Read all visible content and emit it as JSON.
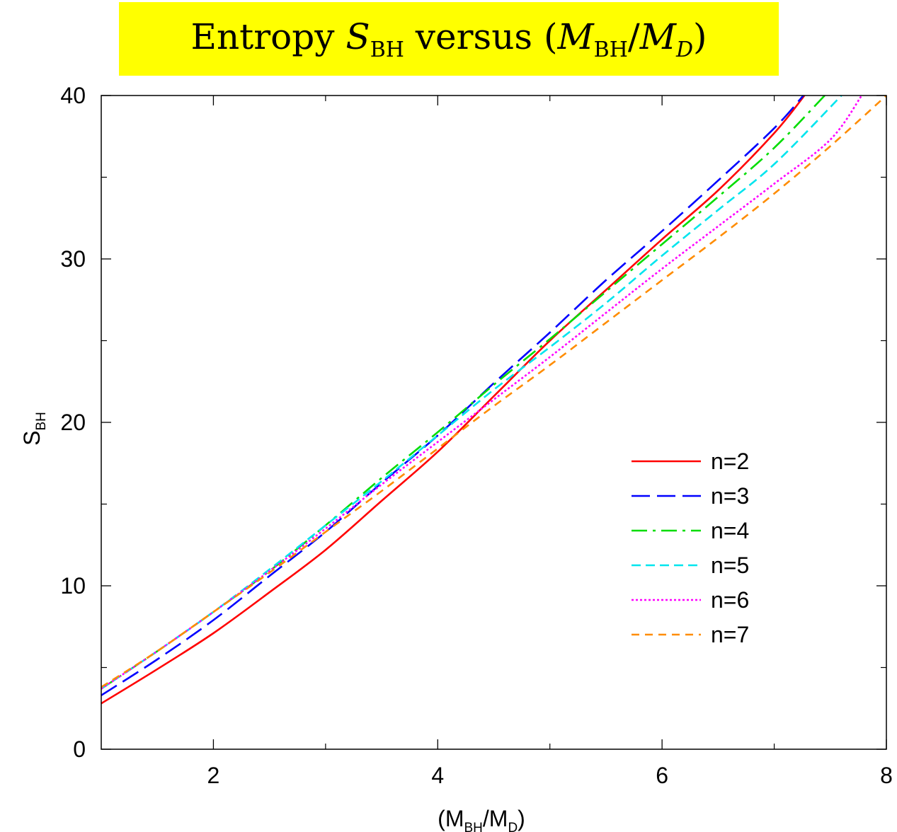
{
  "title": {
    "prefix": "Entropy ",
    "s_symbol": "S",
    "s_sub": "BH",
    "middle": " versus (",
    "m_symbol": "M",
    "m_sub": "BH",
    "slash": "/",
    "md_symbol": "M",
    "md_sub": "D",
    "suffix": ")"
  },
  "colors": {
    "title_background": "#ffff00",
    "axis": "#000000"
  },
  "chart_data": {
    "type": "line",
    "title": "Entropy S_BH versus (M_BH/M_D)",
    "xlabel": "(M_BH/M_D)",
    "ylabel": "S_BH",
    "xlabel_parts": {
      "open": "(M",
      "sub1": "BH",
      "slash": "/M",
      "sub2": "D",
      "close": ")"
    },
    "ylabel_parts": {
      "main": "S",
      "sub": "BH"
    },
    "xlim": [
      1,
      8
    ],
    "ylim": [
      0,
      40
    ],
    "xticks": [
      2,
      4,
      6,
      8
    ],
    "yticks": [
      0,
      10,
      20,
      30,
      40
    ],
    "x_minor_step": 1,
    "y_minor_step": 5,
    "grid": false,
    "legend_position": "right-middle",
    "series": [
      {
        "name": "n=2",
        "color": "#ff0000",
        "dash": "solid",
        "x": [
          1.0,
          1.5,
          2.0,
          2.5,
          3.0,
          3.5,
          4.0,
          4.5,
          5.0,
          5.5,
          6.0,
          6.5,
          7.0,
          7.27
        ],
        "y": [
          2.8,
          4.9,
          7.1,
          9.6,
          12.2,
          15.2,
          18.2,
          21.6,
          25.0,
          28.1,
          31.2,
          34.2,
          37.7,
          40.0
        ]
      },
      {
        "name": "n=3",
        "color": "#0000ff",
        "dash": "long-dash",
        "x": [
          1.0,
          1.5,
          2.0,
          2.5,
          3.0,
          3.5,
          4.0,
          4.5,
          5.0,
          5.5,
          6.0,
          6.5,
          7.0,
          7.26
        ],
        "y": [
          3.3,
          5.5,
          7.9,
          10.6,
          13.3,
          16.3,
          19.2,
          22.4,
          25.5,
          28.7,
          31.7,
          34.8,
          38.0,
          40.0
        ]
      },
      {
        "name": "n=4",
        "color": "#00dd00",
        "dash": "dash-dot",
        "x": [
          1.0,
          1.5,
          2.0,
          2.5,
          3.0,
          3.5,
          4.0,
          4.5,
          5.0,
          5.5,
          6.0,
          6.5,
          7.0,
          7.45
        ],
        "y": [
          3.7,
          6.0,
          8.4,
          10.9,
          13.7,
          16.6,
          19.4,
          22.3,
          25.1,
          28.0,
          30.9,
          33.8,
          36.8,
          40.0
        ]
      },
      {
        "name": "n=5",
        "color": "#00e5ee",
        "dash": "medium-dash",
        "x": [
          1.0,
          1.5,
          2.0,
          2.5,
          3.0,
          3.5,
          4.0,
          4.5,
          5.0,
          5.5,
          6.0,
          6.5,
          7.0,
          7.6
        ],
        "y": [
          3.7,
          6.0,
          8.4,
          11.0,
          13.7,
          16.4,
          19.2,
          22.0,
          24.6,
          27.3,
          30.2,
          33.0,
          35.8,
          40.0
        ]
      },
      {
        "name": "n=6",
        "color": "#ff00ff",
        "dash": "dotted",
        "x": [
          1.0,
          1.5,
          2.0,
          2.5,
          3.0,
          3.5,
          4.0,
          4.5,
          5.0,
          5.5,
          6.0,
          6.5,
          7.0,
          7.5,
          7.78
        ],
        "y": [
          3.7,
          6.0,
          8.4,
          10.9,
          13.5,
          16.2,
          18.8,
          21.4,
          24.0,
          26.7,
          29.4,
          32.0,
          34.6,
          37.3,
          40.0
        ]
      },
      {
        "name": "n=7",
        "color": "#ff8c00",
        "dash": "short-dash",
        "x": [
          1.0,
          1.5,
          2.0,
          2.5,
          3.0,
          3.5,
          4.0,
          4.5,
          5.0,
          5.5,
          6.0,
          6.5,
          7.0,
          7.5,
          8.0
        ],
        "y": [
          3.8,
          6.0,
          8.4,
          10.8,
          13.3,
          15.8,
          18.4,
          21.0,
          23.5,
          26.1,
          28.7,
          31.3,
          34.0,
          36.9,
          40.0
        ]
      }
    ]
  }
}
